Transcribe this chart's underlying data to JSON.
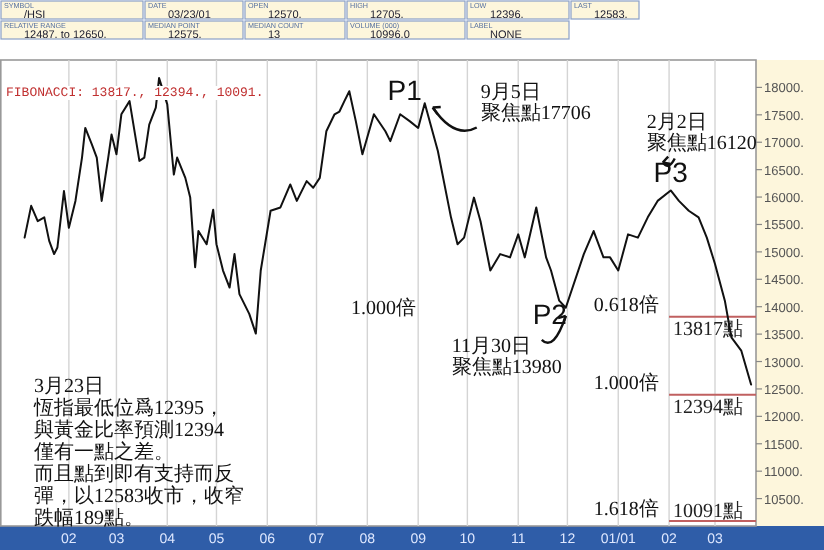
{
  "chart_data": {
    "type": "line",
    "series": [
      {
        "color": "#111111",
        "values": [
          15260,
          15840,
          15560,
          15630,
          15200,
          14960,
          15080,
          16110,
          15440,
          15930,
          16720,
          17260,
          16960,
          16720,
          15930,
          16720,
          17140,
          16780,
          17510,
          17750,
          16660,
          16720,
          17320,
          17630,
          18170,
          17690,
          16410,
          16720,
          16350,
          15990,
          14720,
          15380,
          15140,
          15770,
          15140,
          14660,
          14350,
          14960,
          14230,
          13870,
          13510,
          14660,
          15750,
          15810,
          16230,
          15930,
          16290,
          16170,
          16350,
          17200,
          17510,
          17560,
          17750,
          17930,
          17380,
          16780,
          17510,
          17200,
          17020,
          17510,
          17380,
          17260,
          17710,
          16840,
          15630,
          15140,
          15260,
          15990,
          15560,
          14660,
          14960,
          14900,
          15320,
          14900,
          15810,
          14900,
          14660,
          14110,
          13980,
          14960,
          15380,
          14900,
          14900,
          14660,
          15320,
          15260,
          15630,
          15930,
          16120,
          15930,
          15750,
          15630,
          15260,
          14780,
          14110,
          13440,
          13200,
          12580
        ],
        "x": [
          "2000-01-05",
          "2000-01-09",
          "2000-01-13",
          "2000-01-17",
          "2000-01-20",
          "2000-01-23",
          "2000-01-25",
          "2000-01-29",
          "2000-02-01",
          "2000-02-05",
          "2000-02-09",
          "2000-02-11",
          "2000-02-15",
          "2000-02-18",
          "2000-02-21",
          "2000-02-25",
          "2000-02-27",
          "2000-03-01",
          "2000-03-04",
          "2000-03-09",
          "2000-03-15",
          "2000-03-18",
          "2000-03-21",
          "2000-03-25",
          "2000-03-27",
          "2000-04-01",
          "2000-04-05",
          "2000-04-07",
          "2000-04-12",
          "2000-04-15",
          "2000-04-18",
          "2000-04-20",
          "2000-04-25",
          "2000-04-29",
          "2000-05-01",
          "2000-05-05",
          "2000-05-09",
          "2000-05-12",
          "2000-05-15",
          "2000-05-21",
          "2000-05-25",
          "2000-05-28",
          "2000-06-03",
          "2000-06-09",
          "2000-06-15",
          "2000-06-19",
          "2000-06-25",
          "2000-06-29",
          "2000-07-03",
          "2000-07-07",
          "2000-07-12",
          "2000-07-15",
          "2000-07-18",
          "2000-07-21",
          "2000-07-25",
          "2000-07-29",
          "2000-08-05",
          "2000-08-12",
          "2000-08-15",
          "2000-08-21",
          "2000-08-27",
          "2000-09-01",
          "2000-09-05",
          "2000-09-13",
          "2000-09-21",
          "2000-09-25",
          "2000-09-29",
          "2000-10-05",
          "2000-10-09",
          "2000-10-15",
          "2000-10-21",
          "2000-10-27",
          "2000-11-01",
          "2000-11-05",
          "2000-11-12",
          "2000-11-18",
          "2000-11-21",
          "2000-11-26",
          "2000-11-30",
          "2000-12-11",
          "2000-12-17",
          "2000-12-23",
          "2000-12-27",
          "2001-01-01",
          "2001-01-07",
          "2001-01-13",
          "2001-01-19",
          "2001-01-25",
          "2001-02-02",
          "2001-02-07",
          "2001-02-13",
          "2001-02-19",
          "2001-02-24",
          "2001-03-01",
          "2001-03-07",
          "2001-03-11",
          "2001-03-17",
          "2001-03-23"
        ]
      }
    ],
    "xlim": [
      "1999-12-21",
      "2001-03-26"
    ],
    "xticks": [
      {
        "value": "2000-02-01",
        "label": "02"
      },
      {
        "value": "2000-03-01",
        "label": "03"
      },
      {
        "value": "2000-04-01",
        "label": "04"
      },
      {
        "value": "2000-05-01",
        "label": "05"
      },
      {
        "value": "2000-06-01",
        "label": "06"
      },
      {
        "value": "2000-07-01",
        "label": "07"
      },
      {
        "value": "2000-08-01",
        "label": "08"
      },
      {
        "value": "2000-09-01",
        "label": "09"
      },
      {
        "value": "2000-10-01",
        "label": "10"
      },
      {
        "value": "2000-11-01",
        "label": "11"
      },
      {
        "value": "2000-12-01",
        "label": "12"
      },
      {
        "value": "2001-01-01",
        "label": "01/01"
      },
      {
        "value": "2001-02-01",
        "label": "02"
      },
      {
        "value": "2001-03-01",
        "label": "03"
      }
    ],
    "ylim": [
      10000,
      18500
    ],
    "yticks": [
      {
        "value": 10500,
        "label": "10500."
      },
      {
        "value": 11000,
        "label": "11000."
      },
      {
        "value": 11500,
        "label": "11500."
      },
      {
        "value": 12000,
        "label": "12000."
      },
      {
        "value": 12500,
        "label": "12500."
      },
      {
        "value": 13000,
        "label": "13000."
      },
      {
        "value": 13500,
        "label": "13500."
      },
      {
        "value": 14000,
        "label": "14000."
      },
      {
        "value": 14500,
        "label": "14500."
      },
      {
        "value": 15000,
        "label": "15000."
      },
      {
        "value": 15500,
        "label": "15500."
      },
      {
        "value": 16000,
        "label": "16000."
      },
      {
        "value": 16500,
        "label": "16500."
      },
      {
        "value": 17000,
        "label": "17000."
      },
      {
        "value": 17500,
        "label": "17500."
      },
      {
        "value": 18000,
        "label": "18000."
      }
    ],
    "grid": "x",
    "marker": "none",
    "line_style": "solid",
    "ref_lines": [
      {
        "axis": "y",
        "value": 13817,
        "label": "13817點",
        "color": "#c06060"
      },
      {
        "axis": "y",
        "value": 12394,
        "label": "12394點",
        "color": "#c06060"
      },
      {
        "axis": "y",
        "value": 10091,
        "label": "10091點",
        "color": "#c06060"
      }
    ],
    "annotations": [
      "FIBONACCI: 13817., 12394., 10091.",
      {
        "text": "P1",
        "x": "2000-09-05",
        "y": 17706
      },
      {
        "text": "9月5日聚焦點17706",
        "x": "2000-09-05",
        "y": 17706
      },
      {
        "text": "P2",
        "x": "2000-11-30",
        "y": 13980
      },
      {
        "text": "11月30日聚焦點13980",
        "x": "2000-11-30",
        "y": 13980
      },
      {
        "text": "P3",
        "x": "2001-02-02",
        "y": 16120
      },
      {
        "text": "2月2日聚焦點16120",
        "x": "2001-02-02",
        "y": 16120
      },
      "1.000倍",
      {
        "text": "0.618倍",
        "x": "2001-02-02",
        "y": 13817
      },
      {
        "text": "1.000倍",
        "x": "2001-02-02",
        "y": 12394
      },
      {
        "text": "1.618倍",
        "x": "2001-02-02",
        "y": 10091
      },
      "3月23日恆指最低位爲12395，與黃金比率預測12394僅有一點之差。而且點到即有支持而反彈，以12583收市，收窄跌幅189點。",
      "SYMBOL\n/HSI",
      "DATE\n03/23/01",
      "OPEN\n12570.",
      "HIGH\n12705.",
      "LOW\n12396.",
      "LAST\n12583.",
      "RELATIVE RANGE\n12487. to 12650.",
      "MEDIAN POINT\n12575.",
      "MEDIAN COUNT\n13",
      "VOLUME (000)\n10996.0",
      "LABEL\nNONE"
    ]
  }
}
